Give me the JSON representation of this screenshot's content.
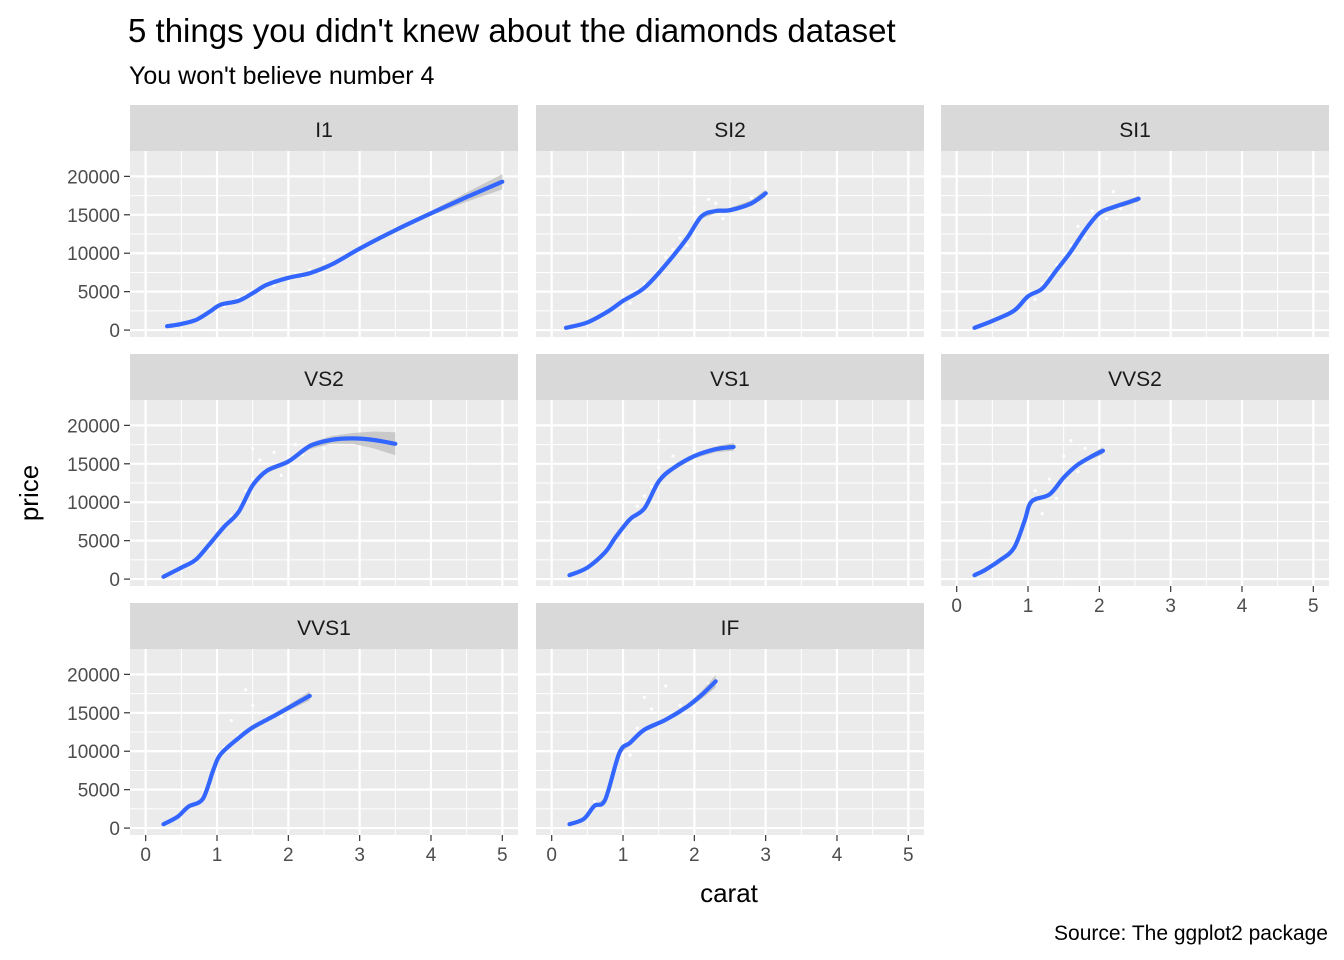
{
  "chart_data": {
    "type": "scatter",
    "title": "5 things you didn't knew about the diamonds dataset",
    "subtitle": "You won't believe number 4",
    "caption": "Source: The ggplot2 package",
    "xlabel": "carat",
    "ylabel": "price",
    "xlim": [
      0,
      5
    ],
    "ylim": [
      0,
      20000
    ],
    "x_ticks": [
      0,
      1,
      2,
      3,
      4,
      5
    ],
    "y_ticks": [
      0,
      5000,
      10000,
      15000,
      20000
    ],
    "x_tick_labels": [
      "0",
      "1",
      "2",
      "3",
      "4",
      "5"
    ],
    "y_tick_labels": [
      "0",
      "5000",
      "10000",
      "15000",
      "20000"
    ],
    "grid": true,
    "colors": {
      "panel_bg": "#ebebeb",
      "strip_bg": "#d9d9d9",
      "grid": "#ffffff",
      "points": "#ffffff",
      "smooth": "#3366ff",
      "ribbon": "#bdbdbd"
    },
    "panels": [
      {
        "name": "I1",
        "smooth": [
          [
            0.3,
            500
          ],
          [
            0.5,
            800
          ],
          [
            0.7,
            1300
          ],
          [
            0.9,
            2400
          ],
          [
            1.05,
            3300
          ],
          [
            1.3,
            3800
          ],
          [
            1.5,
            4800
          ],
          [
            1.7,
            5900
          ],
          [
            2.0,
            6800
          ],
          [
            2.3,
            7400
          ],
          [
            2.6,
            8500
          ],
          [
            3.0,
            10600
          ],
          [
            3.5,
            13000
          ],
          [
            4.0,
            15200
          ],
          [
            4.5,
            17300
          ],
          [
            5.0,
            19300
          ]
        ],
        "ribbon_halfwidth": [
          100,
          100,
          100,
          120,
          150,
          150,
          150,
          200,
          250,
          300,
          300,
          250,
          200,
          300,
          600,
          1000
        ],
        "points": [
          [
            0.4,
            700
          ],
          [
            0.5,
            900
          ],
          [
            0.6,
            1100
          ],
          [
            0.7,
            1500
          ],
          [
            0.8,
            1800
          ],
          [
            0.9,
            2200
          ],
          [
            1.0,
            2800
          ],
          [
            1.0,
            3500
          ],
          [
            1.1,
            3100
          ],
          [
            1.2,
            3700
          ],
          [
            1.3,
            4200
          ],
          [
            1.4,
            4500
          ],
          [
            1.5,
            5100
          ],
          [
            1.6,
            5300
          ],
          [
            1.7,
            6100
          ],
          [
            1.8,
            5800
          ],
          [
            2.0,
            6500
          ],
          [
            2.1,
            7200
          ],
          [
            2.2,
            6900
          ],
          [
            2.3,
            7800
          ],
          [
            2.5,
            9200
          ],
          [
            2.6,
            8300
          ],
          [
            3.0,
            11200
          ],
          [
            4.0,
            15500
          ],
          [
            5.0,
            18500
          ]
        ]
      },
      {
        "name": "SI2",
        "smooth": [
          [
            0.2,
            300
          ],
          [
            0.5,
            1000
          ],
          [
            0.8,
            2500
          ],
          [
            1.0,
            3800
          ],
          [
            1.3,
            5500
          ],
          [
            1.6,
            8500
          ],
          [
            1.9,
            12000
          ],
          [
            2.1,
            14800
          ],
          [
            2.3,
            15500
          ],
          [
            2.5,
            15600
          ],
          [
            2.8,
            16500
          ],
          [
            3.0,
            17800
          ]
        ],
        "ribbon_halfwidth": [
          100,
          100,
          100,
          150,
          200,
          250,
          300,
          300,
          300,
          300,
          400,
          500
        ],
        "points": [
          [
            0.3,
            500
          ],
          [
            0.5,
            900
          ],
          [
            0.7,
            1800
          ],
          [
            0.9,
            3000
          ],
          [
            1.0,
            4200
          ],
          [
            1.1,
            3500
          ],
          [
            1.2,
            5200
          ],
          [
            1.3,
            6000
          ],
          [
            1.5,
            7800
          ],
          [
            1.6,
            9500
          ],
          [
            1.7,
            10500
          ],
          [
            1.8,
            12000
          ],
          [
            1.9,
            11000
          ],
          [
            2.0,
            13500
          ],
          [
            2.0,
            16000
          ],
          [
            2.1,
            15000
          ],
          [
            2.2,
            17000
          ],
          [
            2.3,
            16500
          ],
          [
            2.4,
            14500
          ],
          [
            2.5,
            17500
          ],
          [
            2.6,
            16000
          ],
          [
            2.8,
            17200
          ],
          [
            3.0,
            17900
          ]
        ]
      },
      {
        "name": "SI1",
        "smooth": [
          [
            0.25,
            300
          ],
          [
            0.5,
            1200
          ],
          [
            0.8,
            2500
          ],
          [
            1.0,
            4400
          ],
          [
            1.2,
            5400
          ],
          [
            1.4,
            7800
          ],
          [
            1.6,
            10200
          ],
          [
            1.8,
            13000
          ],
          [
            2.0,
            15200
          ],
          [
            2.2,
            16000
          ],
          [
            2.4,
            16600
          ],
          [
            2.55,
            17100
          ]
        ],
        "ribbon_halfwidth": [
          100,
          100,
          120,
          150,
          200,
          250,
          300,
          300,
          300,
          300,
          350,
          400
        ],
        "points": [
          [
            0.3,
            500
          ],
          [
            0.5,
            1100
          ],
          [
            0.7,
            2000
          ],
          [
            0.9,
            3500
          ],
          [
            1.0,
            4800
          ],
          [
            1.1,
            4000
          ],
          [
            1.2,
            6000
          ],
          [
            1.3,
            7200
          ],
          [
            1.4,
            8500
          ],
          [
            1.5,
            9800
          ],
          [
            1.6,
            11000
          ],
          [
            1.7,
            13500
          ],
          [
            1.8,
            12000
          ],
          [
            1.9,
            15500
          ],
          [
            2.0,
            17000
          ],
          [
            2.1,
            14500
          ],
          [
            2.2,
            18000
          ],
          [
            2.3,
            15800
          ],
          [
            2.4,
            16800
          ],
          [
            2.5,
            17200
          ]
        ]
      },
      {
        "name": "VS2",
        "smooth": [
          [
            0.25,
            300
          ],
          [
            0.5,
            1500
          ],
          [
            0.7,
            2500
          ],
          [
            0.9,
            4600
          ],
          [
            1.1,
            6800
          ],
          [
            1.3,
            8700
          ],
          [
            1.5,
            12200
          ],
          [
            1.7,
            14100
          ],
          [
            2.0,
            15300
          ],
          [
            2.3,
            17300
          ],
          [
            2.6,
            18100
          ],
          [
            2.9,
            18300
          ],
          [
            3.2,
            18100
          ],
          [
            3.5,
            17600
          ]
        ],
        "ribbon_halfwidth": [
          100,
          100,
          120,
          150,
          200,
          250,
          300,
          300,
          300,
          400,
          500,
          700,
          1100,
          1500
        ],
        "points": [
          [
            0.3,
            500
          ],
          [
            0.5,
            1300
          ],
          [
            0.7,
            2200
          ],
          [
            0.9,
            4000
          ],
          [
            1.0,
            5500
          ],
          [
            1.1,
            7000
          ],
          [
            1.2,
            8200
          ],
          [
            1.3,
            9000
          ],
          [
            1.4,
            11500
          ],
          [
            1.5,
            13000
          ],
          [
            1.5,
            17000
          ],
          [
            1.6,
            15500
          ],
          [
            1.7,
            14000
          ],
          [
            1.8,
            16500
          ],
          [
            1.9,
            13500
          ],
          [
            2.0,
            15800
          ],
          [
            2.1,
            17500
          ],
          [
            2.2,
            16200
          ],
          [
            2.5,
            17000
          ],
          [
            3.0,
            18000
          ]
        ]
      },
      {
        "name": "VS1",
        "smooth": [
          [
            0.25,
            500
          ],
          [
            0.5,
            1500
          ],
          [
            0.75,
            3500
          ],
          [
            0.9,
            5500
          ],
          [
            1.1,
            7800
          ],
          [
            1.3,
            9200
          ],
          [
            1.5,
            12700
          ],
          [
            1.7,
            14400
          ],
          [
            2.0,
            16000
          ],
          [
            2.3,
            16900
          ],
          [
            2.55,
            17200
          ]
        ],
        "ribbon_halfwidth": [
          100,
          100,
          120,
          150,
          200,
          250,
          300,
          300,
          300,
          400,
          500
        ],
        "points": [
          [
            0.3,
            600
          ],
          [
            0.5,
            1400
          ],
          [
            0.7,
            3000
          ],
          [
            0.9,
            5000
          ],
          [
            1.0,
            6800
          ],
          [
            1.1,
            8000
          ],
          [
            1.2,
            9500
          ],
          [
            1.3,
            10800
          ],
          [
            1.4,
            12000
          ],
          [
            1.5,
            14500
          ],
          [
            1.5,
            18000
          ],
          [
            1.6,
            13500
          ],
          [
            1.7,
            16000
          ],
          [
            1.8,
            15000
          ],
          [
            2.0,
            17000
          ],
          [
            2.1,
            16500
          ],
          [
            2.3,
            17200
          ]
        ]
      },
      {
        "name": "VVS2",
        "smooth": [
          [
            0.25,
            500
          ],
          [
            0.4,
            1200
          ],
          [
            0.6,
            2400
          ],
          [
            0.8,
            4000
          ],
          [
            0.95,
            7500
          ],
          [
            1.05,
            10100
          ],
          [
            1.3,
            11000
          ],
          [
            1.5,
            13200
          ],
          [
            1.7,
            14900
          ],
          [
            1.9,
            16000
          ],
          [
            2.05,
            16700
          ]
        ],
        "ribbon_halfwidth": [
          100,
          100,
          120,
          150,
          200,
          250,
          300,
          300,
          300,
          350,
          450
        ],
        "points": [
          [
            0.3,
            600
          ],
          [
            0.5,
            1500
          ],
          [
            0.7,
            3000
          ],
          [
            0.9,
            6000
          ],
          [
            1.0,
            9000
          ],
          [
            1.1,
            11500
          ],
          [
            1.2,
            8500
          ],
          [
            1.3,
            13000
          ],
          [
            1.4,
            10500
          ],
          [
            1.5,
            16000
          ],
          [
            1.6,
            18000
          ],
          [
            1.7,
            14000
          ],
          [
            1.8,
            17000
          ],
          [
            2.0,
            16500
          ]
        ]
      },
      {
        "name": "VVS1",
        "smooth": [
          [
            0.25,
            500
          ],
          [
            0.45,
            1500
          ],
          [
            0.6,
            2800
          ],
          [
            0.8,
            3800
          ],
          [
            0.95,
            7600
          ],
          [
            1.05,
            9600
          ],
          [
            1.3,
            11700
          ],
          [
            1.5,
            13100
          ],
          [
            1.8,
            14600
          ],
          [
            2.05,
            15900
          ],
          [
            2.3,
            17200
          ]
        ],
        "ribbon_halfwidth": [
          100,
          100,
          120,
          150,
          200,
          250,
          300,
          300,
          300,
          400,
          600
        ],
        "points": [
          [
            0.3,
            600
          ],
          [
            0.5,
            1800
          ],
          [
            0.7,
            3200
          ],
          [
            0.9,
            5500
          ],
          [
            1.0,
            9000
          ],
          [
            1.1,
            10500
          ],
          [
            1.2,
            14000
          ],
          [
            1.3,
            12000
          ],
          [
            1.4,
            18000
          ],
          [
            1.5,
            16000
          ],
          [
            1.6,
            13500
          ],
          [
            1.7,
            15000
          ],
          [
            1.9,
            14500
          ],
          [
            2.0,
            16500
          ],
          [
            2.2,
            17000
          ]
        ]
      },
      {
        "name": "IF",
        "smooth": [
          [
            0.25,
            500
          ],
          [
            0.45,
            1200
          ],
          [
            0.6,
            2900
          ],
          [
            0.75,
            3700
          ],
          [
            0.95,
            9800
          ],
          [
            1.1,
            11100
          ],
          [
            1.3,
            12800
          ],
          [
            1.6,
            14100
          ],
          [
            1.9,
            15800
          ],
          [
            2.1,
            17300
          ],
          [
            2.3,
            19100
          ]
        ],
        "ribbon_halfwidth": [
          100,
          100,
          120,
          150,
          200,
          300,
          300,
          300,
          350,
          500,
          800
        ],
        "points": [
          [
            0.3,
            600
          ],
          [
            0.5,
            1500
          ],
          [
            0.6,
            3500
          ],
          [
            0.8,
            4500
          ],
          [
            0.9,
            8000
          ],
          [
            1.0,
            11500
          ],
          [
            1.1,
            9500
          ],
          [
            1.2,
            13000
          ],
          [
            1.3,
            17000
          ],
          [
            1.4,
            15500
          ],
          [
            1.5,
            13500
          ],
          [
            1.6,
            18500
          ],
          [
            1.8,
            16000
          ],
          [
            2.0,
            17500
          ],
          [
            2.2,
            18800
          ]
        ]
      }
    ]
  }
}
